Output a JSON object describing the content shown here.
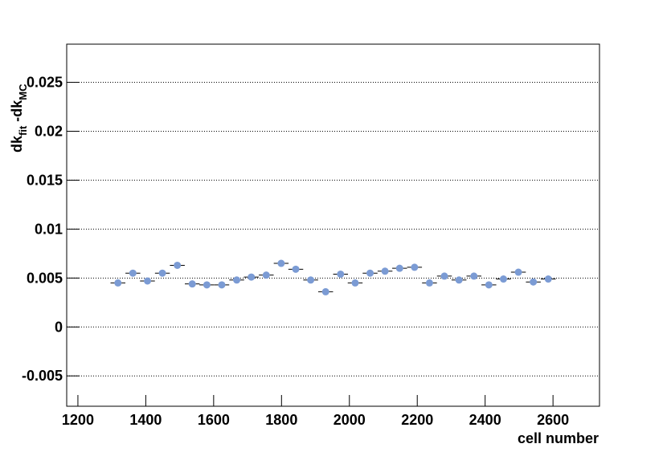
{
  "chart_data": {
    "type": "profile",
    "x_label": "cell number",
    "y_label_parts": [
      "dk",
      "fit",
      " -dk",
      "MC"
    ],
    "x": [
      1318,
      1362,
      1405,
      1449,
      1493,
      1537,
      1580,
      1624,
      1668,
      1711,
      1755,
      1799,
      1842,
      1886,
      1930,
      1974,
      2017,
      2061,
      2105,
      2148,
      2192,
      2236,
      2280,
      2323,
      2367,
      2411,
      2454,
      2498,
      2542,
      2586
    ],
    "values": [
      0.0045,
      0.0055,
      0.0047,
      0.0055,
      0.0063,
      0.0044,
      0.0043,
      0.0043,
      0.0048,
      0.0051,
      0.0053,
      0.0065,
      0.0059,
      0.0048,
      0.0036,
      0.0054,
      0.0045,
      0.0055,
      0.0057,
      0.006,
      0.0061,
      0.0045,
      0.0052,
      0.0048,
      0.0052,
      0.0043,
      0.0049,
      0.0056,
      0.0046,
      0.0049
    ],
    "errors": [
      0.0003,
      0.0003,
      0.0003,
      0.0003,
      0.0003,
      0.0003,
      0.0003,
      0.0003,
      0.0003,
      0.0003,
      0.0003,
      0.0003,
      0.0003,
      0.0003,
      0.0003,
      0.0003,
      0.0003,
      0.0003,
      0.0003,
      0.0003,
      0.0003,
      0.0003,
      0.0003,
      0.0003,
      0.0003,
      0.0003,
      0.0003,
      0.0003,
      0.0003,
      0.0003
    ],
    "color": "#7b9bd4",
    "xlim": [
      1167,
      2737
    ],
    "xticks": [
      1200,
      1400,
      1600,
      1800,
      2000,
      2200,
      2400,
      2600
    ],
    "ylim": [
      -0.0081,
      0.0289
    ],
    "yticks": [
      -0.005,
      0,
      0.005,
      0.01,
      0.015,
      0.02,
      0.025
    ],
    "grid": true
  }
}
